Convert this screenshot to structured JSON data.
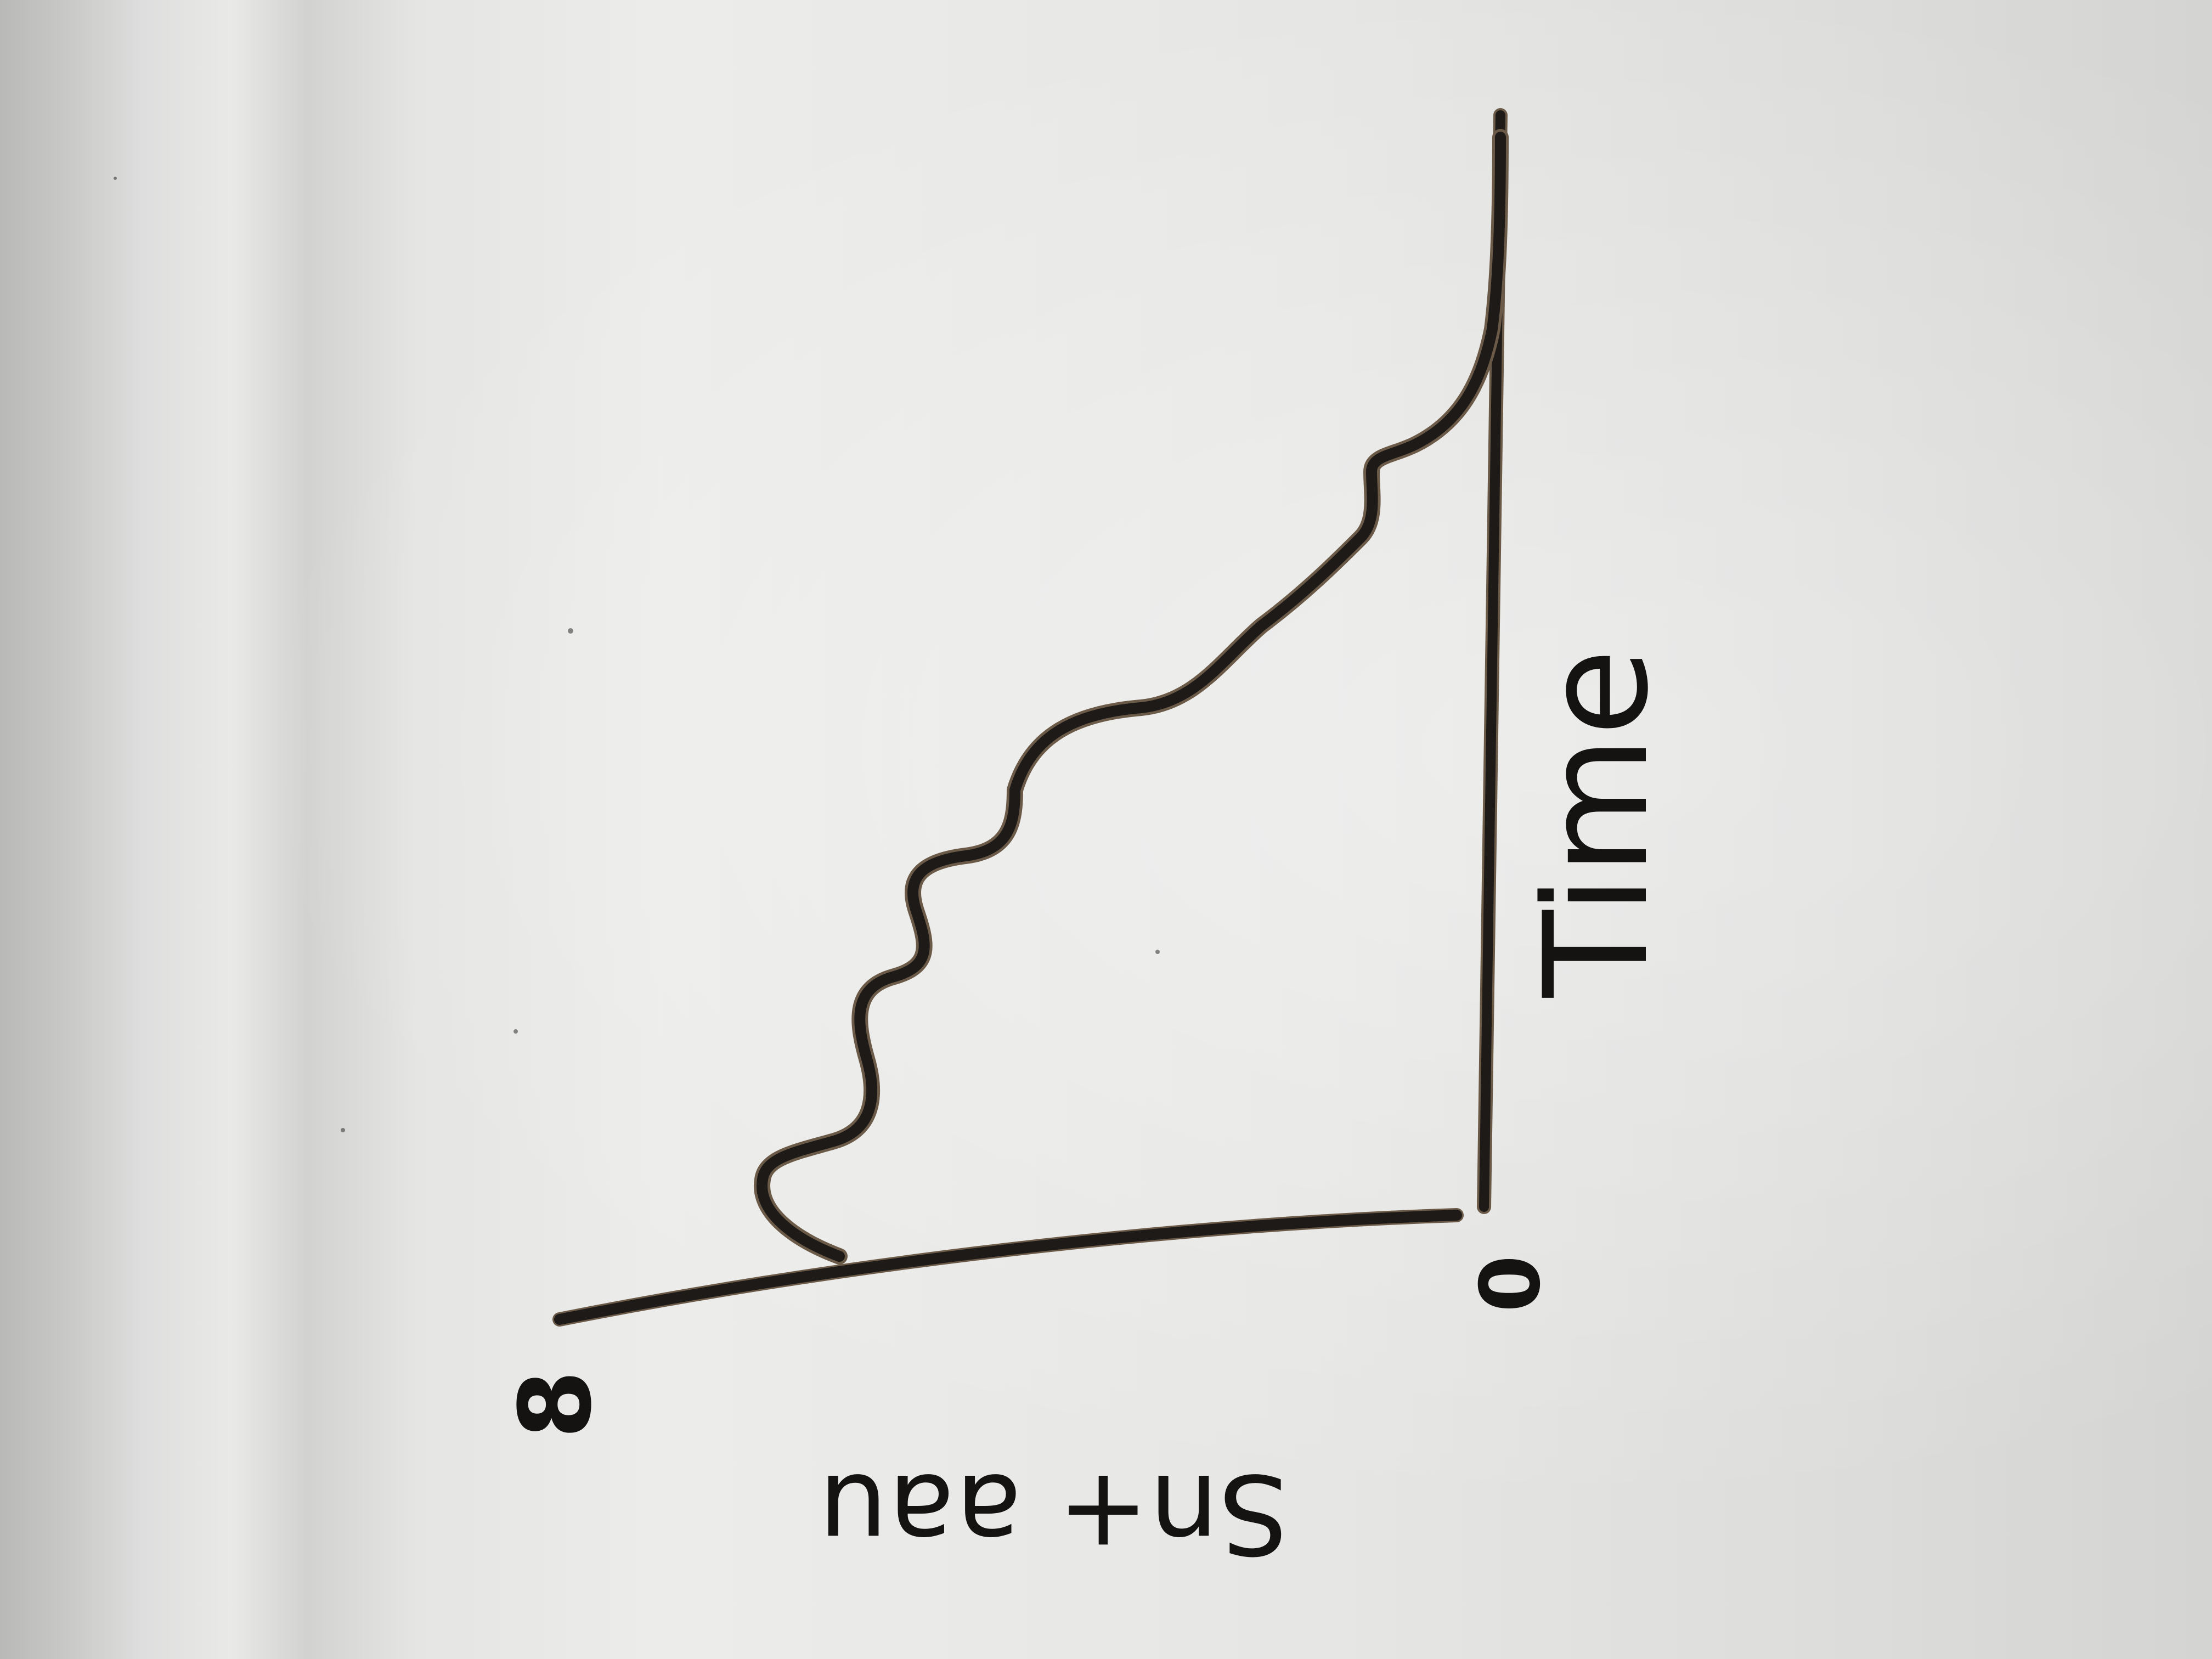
{
  "whiteboard": {
    "ink_color": "#1d1a17",
    "board_color": "#e6e6e4",
    "handwriting": {
      "vertical_axis_label": "Time",
      "origin_label": "0",
      "horizontal_axis_end_label": "8",
      "horizontal_axis_label": "Sn+ aau"
    }
  }
}
